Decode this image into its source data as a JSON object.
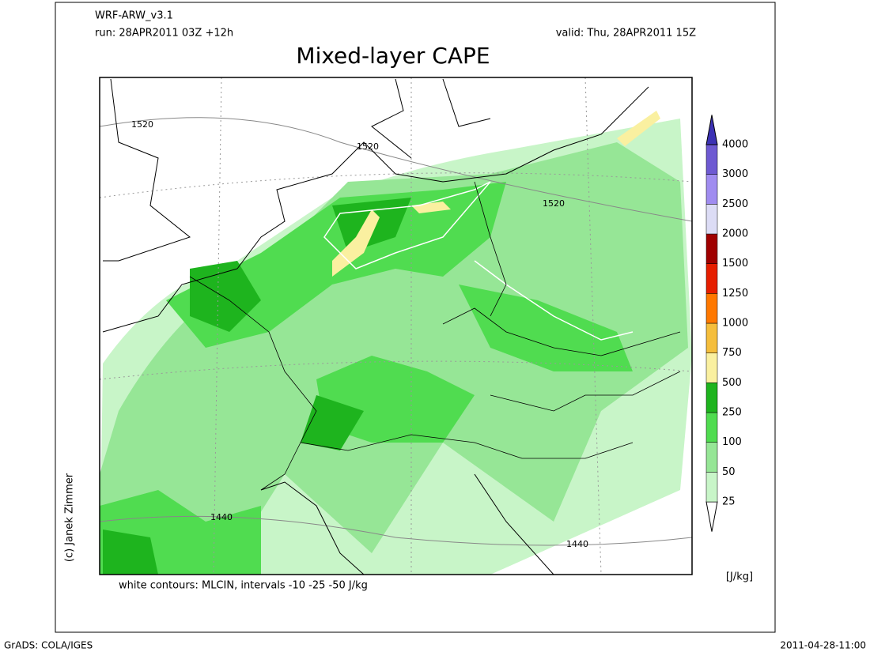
{
  "header": {
    "model": "WRF-ARW_v3.1",
    "run": "run: 28APR2011 03Z +12h",
    "valid": "valid: Thu, 28APR2011 15Z",
    "title": "Mixed-layer CAPE"
  },
  "map": {
    "contour_labels": [
      "1520",
      "1520",
      "1520",
      "1440",
      "1440"
    ],
    "caption": "white contours: MLCIN, intervals -10 -25 -50 J/kg",
    "credit": "(c) Janek Zimmer"
  },
  "colorbar": {
    "levels": [
      25,
      50,
      100,
      250,
      500,
      750,
      1000,
      1250,
      1500,
      2000,
      2500,
      3000,
      4000
    ],
    "colors": [
      "#ffffff",
      "#c8f5c8",
      "#96e696",
      "#50dc50",
      "#1eb41e",
      "#faf0a0",
      "#f5be3c",
      "#ff7800",
      "#e61e00",
      "#a00000",
      "#dcdcf5",
      "#a08cf0",
      "#6e5ad2",
      "#3c32b4"
    ],
    "unit": "[J/kg]"
  },
  "footer": {
    "left": "GrADS: COLA/IGES",
    "right": "2011-04-28-11:00"
  }
}
